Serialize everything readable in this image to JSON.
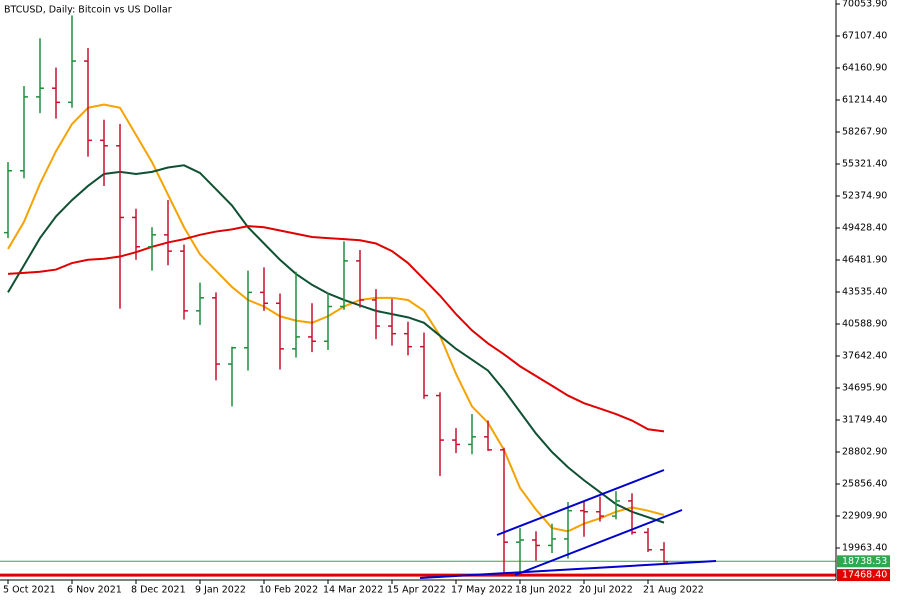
{
  "chart_data": {
    "type": "ohlc",
    "title": "BTCUSD, Daily:  Bitcoin vs US Dollar",
    "categories": [
      "5 Oct 2021",
      null,
      null,
      null,
      "6 Nov 2021",
      null,
      null,
      null,
      "8 Dec 2021",
      null,
      null,
      null,
      "9 Jan 2022",
      null,
      null,
      null,
      "10 Feb 2022",
      null,
      null,
      null,
      "14 Mar 2022",
      null,
      null,
      null,
      "15 Apr 2022",
      null,
      null,
      null,
      "17 May 2022",
      null,
      null,
      null,
      "18 Jun 2022",
      null,
      null,
      null,
      "20 Jul 2022",
      null,
      null,
      null,
      "21 Aug 2022",
      null
    ],
    "open": [
      49000,
      54700,
      61500,
      62300,
      61000,
      64800,
      57500,
      57000,
      50400,
      47700,
      48800,
      47300,
      41800,
      43000,
      36900,
      38400,
      43500,
      42500,
      38300,
      39400,
      39000,
      42200,
      46400,
      42800,
      40400,
      39700,
      38500,
      34000,
      29900,
      29500,
      30200,
      29000,
      20500,
      20700,
      20200,
      20800,
      23400,
      23300,
      22900,
      24300,
      21400,
      19800
    ],
    "high": [
      55500,
      62500,
      66900,
      64200,
      69000,
      66000,
      59400,
      59000,
      51200,
      49500,
      52000,
      47900,
      44400,
      43500,
      38500,
      45500,
      45800,
      43400,
      45400,
      42500,
      43500,
      48200,
      47400,
      43800,
      42900,
      40800,
      39800,
      34300,
      31000,
      32300,
      31700,
      29200,
      21800,
      21500,
      22200,
      24200,
      24200,
      24700,
      25200,
      25000,
      21800,
      20500
    ],
    "low": [
      48500,
      54000,
      60000,
      59500,
      60500,
      56000,
      53300,
      42000,
      46500,
      45500,
      46000,
      41000,
      40500,
      35400,
      33000,
      36300,
      41800,
      36400,
      37500,
      38000,
      38200,
      41900,
      42100,
      39200,
      38600,
      37700,
      33700,
      26600,
      28700,
      28600,
      28900,
      17600,
      17700,
      18800,
      19500,
      19000,
      21000,
      22400,
      22600,
      21200,
      19600,
      18600
    ],
    "close": [
      54700,
      61500,
      62300,
      61000,
      64800,
      57500,
      57000,
      50400,
      47700,
      48800,
      47300,
      41800,
      43000,
      36900,
      38400,
      43500,
      42500,
      38300,
      39400,
      39000,
      42200,
      46400,
      42800,
      40400,
      39700,
      38500,
      34000,
      29900,
      29500,
      30200,
      29000,
      20500,
      20700,
      20200,
      20800,
      23400,
      23300,
      22900,
      24300,
      21400,
      19800,
      18700
    ],
    "up_color": "#1f8f3a",
    "down_color": "#c8102e",
    "moving_averages": [
      {
        "color": "#f4a300",
        "values": [
          47500,
          50000,
          53500,
          56500,
          59000,
          60500,
          60800,
          60500,
          58000,
          55500,
          52500,
          49500,
          47000,
          45500,
          44000,
          42800,
          42200,
          41300,
          40900,
          40700,
          41300,
          42200,
          42800,
          43000,
          43000,
          42800,
          41800,
          39500,
          36000,
          33000,
          31500,
          29000,
          25500,
          23500,
          21800,
          21500,
          22200,
          22700,
          23300,
          23700,
          23400,
          23000
        ]
      },
      {
        "color": "#0f5132",
        "values": [
          43500,
          46000,
          48500,
          50500,
          52000,
          53300,
          54400,
          54600,
          54400,
          54600,
          55000,
          55200,
          54500,
          53000,
          51500,
          49500,
          48000,
          46500,
          45200,
          44200,
          43400,
          42800,
          42300,
          41800,
          41500,
          41200,
          40700,
          39500,
          38300,
          37300,
          36300,
          34500,
          32500,
          30500,
          28800,
          27400,
          26200,
          25100,
          24000,
          23300,
          22800,
          22300
        ]
      },
      {
        "color": "#e00000",
        "values": [
          45200,
          45300,
          45400,
          45600,
          46200,
          46500,
          46600,
          46800,
          47200,
          47700,
          48100,
          48400,
          48800,
          49100,
          49300,
          49600,
          49500,
          49200,
          48900,
          48600,
          48500,
          48400,
          48300,
          48000,
          47300,
          46200,
          44700,
          43200,
          41500,
          40000,
          38800,
          37800,
          36700,
          35800,
          34900,
          34000,
          33300,
          32800,
          32300,
          31700,
          30900,
          30700
        ]
      }
    ],
    "price_levels": [
      {
        "value": 18738.53,
        "label": "18738.53",
        "color": "#2fa84f"
      },
      {
        "value": 17468.4,
        "label": "17468.40",
        "color": "#e00000"
      }
    ],
    "ylim": [
      15175.4,
      70422.2
    ],
    "yticks": [
      {
        "value": 70053.9,
        "label": "70053.90"
      },
      {
        "value": 67107.4,
        "label": "67107.40"
      },
      {
        "value": 64160.9,
        "label": "64160.90"
      },
      {
        "value": 61214.4,
        "label": "61214.40"
      },
      {
        "value": 58267.9,
        "label": "58267.90"
      },
      {
        "value": 55321.4,
        "label": "55321.40"
      },
      {
        "value": 52374.9,
        "label": "52374.90"
      },
      {
        "value": 49428.4,
        "label": "49428.40"
      },
      {
        "value": 46481.9,
        "label": "46481.90"
      },
      {
        "value": 43535.4,
        "label": "43535.40"
      },
      {
        "value": 40588.9,
        "label": "40588.90"
      },
      {
        "value": 37642.4,
        "label": "37642.40"
      },
      {
        "value": 34695.9,
        "label": "34695.90"
      },
      {
        "value": 31749.4,
        "label": "31749.40"
      },
      {
        "value": 28802.9,
        "label": "28802.90"
      },
      {
        "value": 25856.4,
        "label": "25856.40"
      },
      {
        "value": 22909.9,
        "label": "22909.90"
      },
      {
        "value": 19963.4,
        "label": "19963.40"
      }
    ],
    "grid": false
  }
}
